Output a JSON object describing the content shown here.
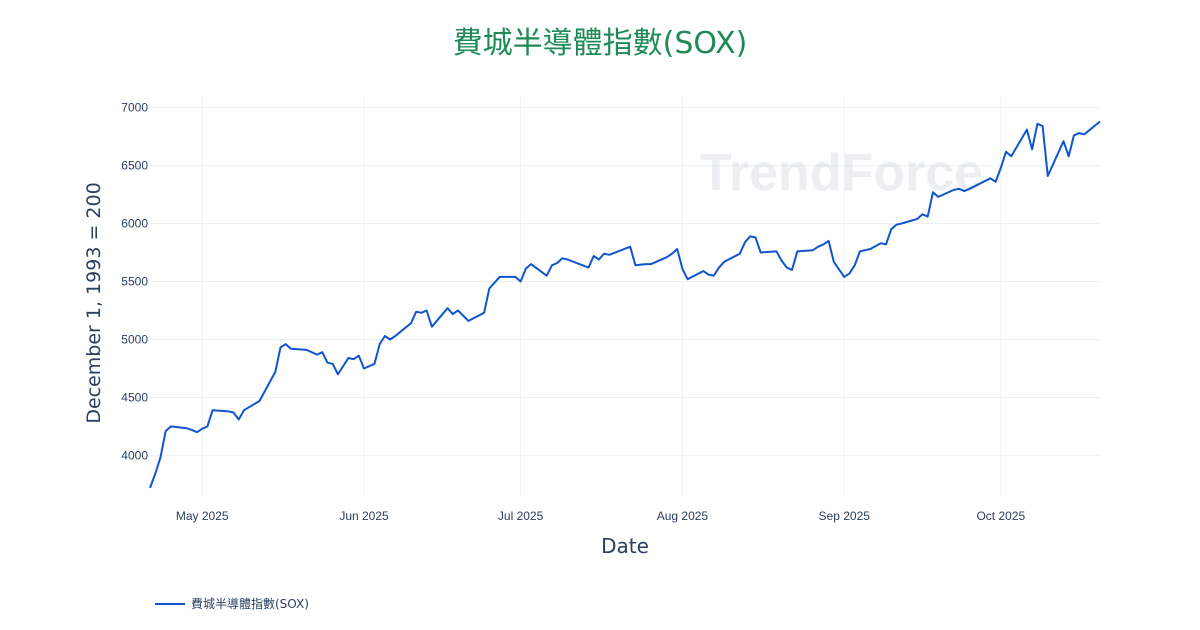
{
  "chart_data": {
    "type": "line",
    "title": "費城半導體指數(SOX)",
    "xlabel": "Date",
    "ylabel": "December 1, 1993 = 200",
    "watermark": "TrendForce",
    "x_tick_labels": [
      "May 2025",
      "Jun 2025",
      "Jul 2025",
      "Aug 2025",
      "Sep 2025",
      "Oct 2025"
    ],
    "y_ticks": [
      4000,
      4500,
      5000,
      5500,
      6000,
      6500,
      7000
    ],
    "ylim": [
      3650,
      7100
    ],
    "xlim": [
      "2025-04-21",
      "2025-10-20"
    ],
    "grid": true,
    "legend_position": "bottom-left",
    "colors": {
      "title": "#1e8a56",
      "series": "#1155cc",
      "grid": "#eef1f4",
      "text": "#2a3f5f"
    },
    "series": [
      {
        "name": "費城半導體指數(SOX)",
        "points": [
          [
            "2025-04-21",
            3720
          ],
          [
            "2025-04-22",
            3840
          ],
          [
            "2025-04-23",
            3980
          ],
          [
            "2025-04-24",
            4210
          ],
          [
            "2025-04-25",
            4250
          ],
          [
            "2025-04-28",
            4235
          ],
          [
            "2025-04-29",
            4220
          ],
          [
            "2025-04-30",
            4200
          ],
          [
            "2025-05-01",
            4230
          ],
          [
            "2025-05-02",
            4250
          ],
          [
            "2025-05-03",
            4390
          ],
          [
            "2025-05-06",
            4380
          ],
          [
            "2025-05-07",
            4370
          ],
          [
            "2025-05-08",
            4310
          ],
          [
            "2025-05-09",
            4390
          ],
          [
            "2025-05-12",
            4470
          ],
          [
            "2025-05-15",
            4720
          ],
          [
            "2025-05-16",
            4930
          ],
          [
            "2025-05-17",
            4960
          ],
          [
            "2025-05-18",
            4920
          ],
          [
            "2025-05-21",
            4910
          ],
          [
            "2025-05-23",
            4870
          ],
          [
            "2025-05-24",
            4890
          ],
          [
            "2025-05-25",
            4800
          ],
          [
            "2025-05-26",
            4790
          ],
          [
            "2025-05-27",
            4700
          ],
          [
            "2025-05-29",
            4840
          ],
          [
            "2025-05-30",
            4830
          ],
          [
            "2025-05-31",
            4860
          ],
          [
            "2025-06-01",
            4750
          ],
          [
            "2025-06-03",
            4790
          ],
          [
            "2025-06-04",
            4960
          ],
          [
            "2025-06-05",
            5030
          ],
          [
            "2025-06-06",
            5000
          ],
          [
            "2025-06-07",
            5030
          ],
          [
            "2025-06-10",
            5140
          ],
          [
            "2025-06-11",
            5240
          ],
          [
            "2025-06-12",
            5230
          ],
          [
            "2025-06-13",
            5250
          ],
          [
            "2025-06-14",
            5110
          ],
          [
            "2025-06-17",
            5270
          ],
          [
            "2025-06-18",
            5220
          ],
          [
            "2025-06-19",
            5250
          ],
          [
            "2025-06-21",
            5160
          ],
          [
            "2025-06-24",
            5230
          ],
          [
            "2025-06-25",
            5440
          ],
          [
            "2025-06-27",
            5540
          ],
          [
            "2025-06-30",
            5540
          ],
          [
            "2025-07-01",
            5500
          ],
          [
            "2025-07-02",
            5610
          ],
          [
            "2025-07-03",
            5650
          ],
          [
            "2025-07-06",
            5550
          ],
          [
            "2025-07-07",
            5640
          ],
          [
            "2025-07-08",
            5660
          ],
          [
            "2025-07-09",
            5700
          ],
          [
            "2025-07-10",
            5690
          ],
          [
            "2025-07-14",
            5620
          ],
          [
            "2025-07-15",
            5720
          ],
          [
            "2025-07-16",
            5690
          ],
          [
            "2025-07-17",
            5740
          ],
          [
            "2025-07-18",
            5730
          ],
          [
            "2025-07-22",
            5800
          ],
          [
            "2025-07-23",
            5640
          ],
          [
            "2025-07-25",
            5650
          ],
          [
            "2025-07-26",
            5650
          ],
          [
            "2025-07-29",
            5710
          ],
          [
            "2025-07-30",
            5740
          ],
          [
            "2025-07-31",
            5780
          ],
          [
            "2025-08-01",
            5610
          ],
          [
            "2025-08-02",
            5520
          ],
          [
            "2025-08-05",
            5590
          ],
          [
            "2025-08-06",
            5560
          ],
          [
            "2025-08-07",
            5550
          ],
          [
            "2025-08-08",
            5620
          ],
          [
            "2025-08-09",
            5670
          ],
          [
            "2025-08-12",
            5740
          ],
          [
            "2025-08-13",
            5840
          ],
          [
            "2025-08-14",
            5890
          ],
          [
            "2025-08-15",
            5880
          ],
          [
            "2025-08-16",
            5750
          ],
          [
            "2025-08-19",
            5760
          ],
          [
            "2025-08-20",
            5680
          ],
          [
            "2025-08-21",
            5620
          ],
          [
            "2025-08-22",
            5600
          ],
          [
            "2025-08-23",
            5760
          ],
          [
            "2025-08-26",
            5770
          ],
          [
            "2025-08-27",
            5800
          ],
          [
            "2025-08-28",
            5820
          ],
          [
            "2025-08-29",
            5850
          ],
          [
            "2025-08-30",
            5670
          ],
          [
            "2025-09-01",
            5540
          ],
          [
            "2025-09-02",
            5570
          ],
          [
            "2025-09-03",
            5640
          ],
          [
            "2025-09-04",
            5760
          ],
          [
            "2025-09-05",
            5770
          ],
          [
            "2025-09-06",
            5780
          ],
          [
            "2025-09-08",
            5830
          ],
          [
            "2025-09-09",
            5820
          ],
          [
            "2025-09-10",
            5950
          ],
          [
            "2025-09-11",
            5990
          ],
          [
            "2025-09-12",
            6000
          ],
          [
            "2025-09-15",
            6040
          ],
          [
            "2025-09-16",
            6080
          ],
          [
            "2025-09-17",
            6060
          ],
          [
            "2025-09-18",
            6270
          ],
          [
            "2025-09-19",
            6230
          ],
          [
            "2025-09-22",
            6290
          ],
          [
            "2025-09-23",
            6300
          ],
          [
            "2025-09-24",
            6280
          ],
          [
            "2025-09-25",
            6300
          ],
          [
            "2025-09-29",
            6390
          ],
          [
            "2025-09-30",
            6360
          ],
          [
            "2025-10-01",
            6480
          ],
          [
            "2025-10-02",
            6620
          ],
          [
            "2025-10-03",
            6580
          ],
          [
            "2025-10-06",
            6810
          ],
          [
            "2025-10-07",
            6640
          ],
          [
            "2025-10-08",
            6860
          ],
          [
            "2025-10-09",
            6840
          ],
          [
            "2025-10-10",
            6410
          ],
          [
            "2025-10-13",
            6710
          ],
          [
            "2025-10-14",
            6580
          ],
          [
            "2025-10-15",
            6760
          ],
          [
            "2025-10-16",
            6780
          ],
          [
            "2025-10-17",
            6770
          ],
          [
            "2025-10-20",
            6880
          ]
        ]
      }
    ]
  }
}
